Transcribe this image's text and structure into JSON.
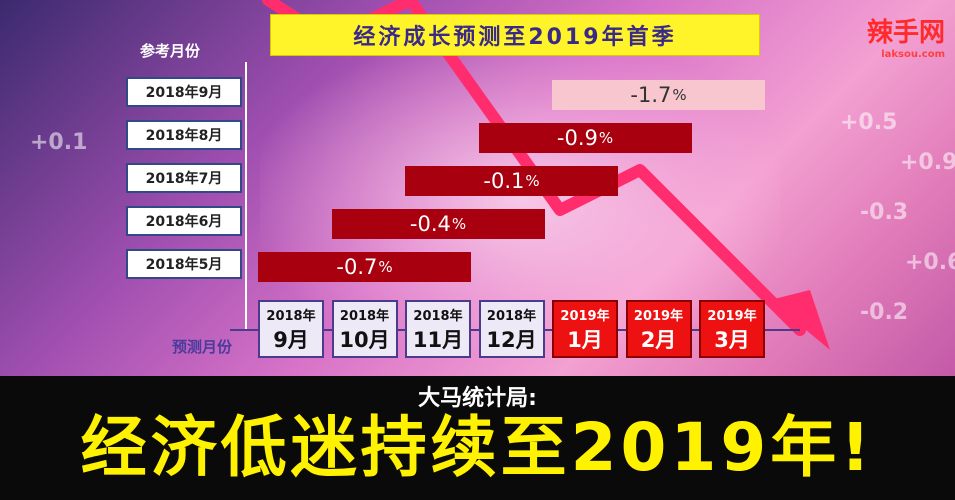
{
  "header": {
    "title": "经济成长预测至2019年首季",
    "logo_text": "辣手网",
    "logo_sub": "laksou.com"
  },
  "axis": {
    "y_title": "参考月份",
    "x_title": "预测月份"
  },
  "colors": {
    "bar_dark": "#a8000e",
    "bar_light": "#f8c6cf",
    "month_2018_bg": "#ede9f7",
    "month_2019_bg": "#ee1111",
    "title_bg": "#fff32a",
    "headline": "#fff200"
  },
  "footer": {
    "subhead": "大马统计局:",
    "headline": "经济低迷持续至2019年!"
  },
  "background_numbers": [
    "+0.5",
    "+0.9",
    "-0.3",
    "+0.6",
    "-0.2",
    "+0.1"
  ],
  "chart_data": {
    "type": "bar",
    "title": "经济成长预测至2019年首季",
    "xlabel": "预测月份",
    "ylabel": "参考月份",
    "x_categories": [
      {
        "year": "2018年",
        "month": "9月"
      },
      {
        "year": "2018年",
        "month": "10月"
      },
      {
        "year": "2018年",
        "month": "11月"
      },
      {
        "year": "2018年",
        "month": "12月"
      },
      {
        "year": "2019年",
        "month": "1月"
      },
      {
        "year": "2019年",
        "month": "2月"
      },
      {
        "year": "2019年",
        "month": "3月"
      }
    ],
    "series": [
      {
        "reference": "2018年5月",
        "start": "2018年9月",
        "end": "2018年11月",
        "value": "-0.7",
        "unit": "%"
      },
      {
        "reference": "2018年6月",
        "start": "2018年10月",
        "end": "2018年12月",
        "value": "-0.4",
        "unit": "%"
      },
      {
        "reference": "2018年7月",
        "start": "2018年11月",
        "end": "2019年1月",
        "value": "-0.1",
        "unit": "%"
      },
      {
        "reference": "2018年8月",
        "start": "2018年12月",
        "end": "2019年2月",
        "value": "-0.9",
        "unit": "%"
      },
      {
        "reference": "2018年9月",
        "start": "2019年1月",
        "end": "2019年3月",
        "value": "-1.7",
        "unit": "%"
      }
    ]
  }
}
